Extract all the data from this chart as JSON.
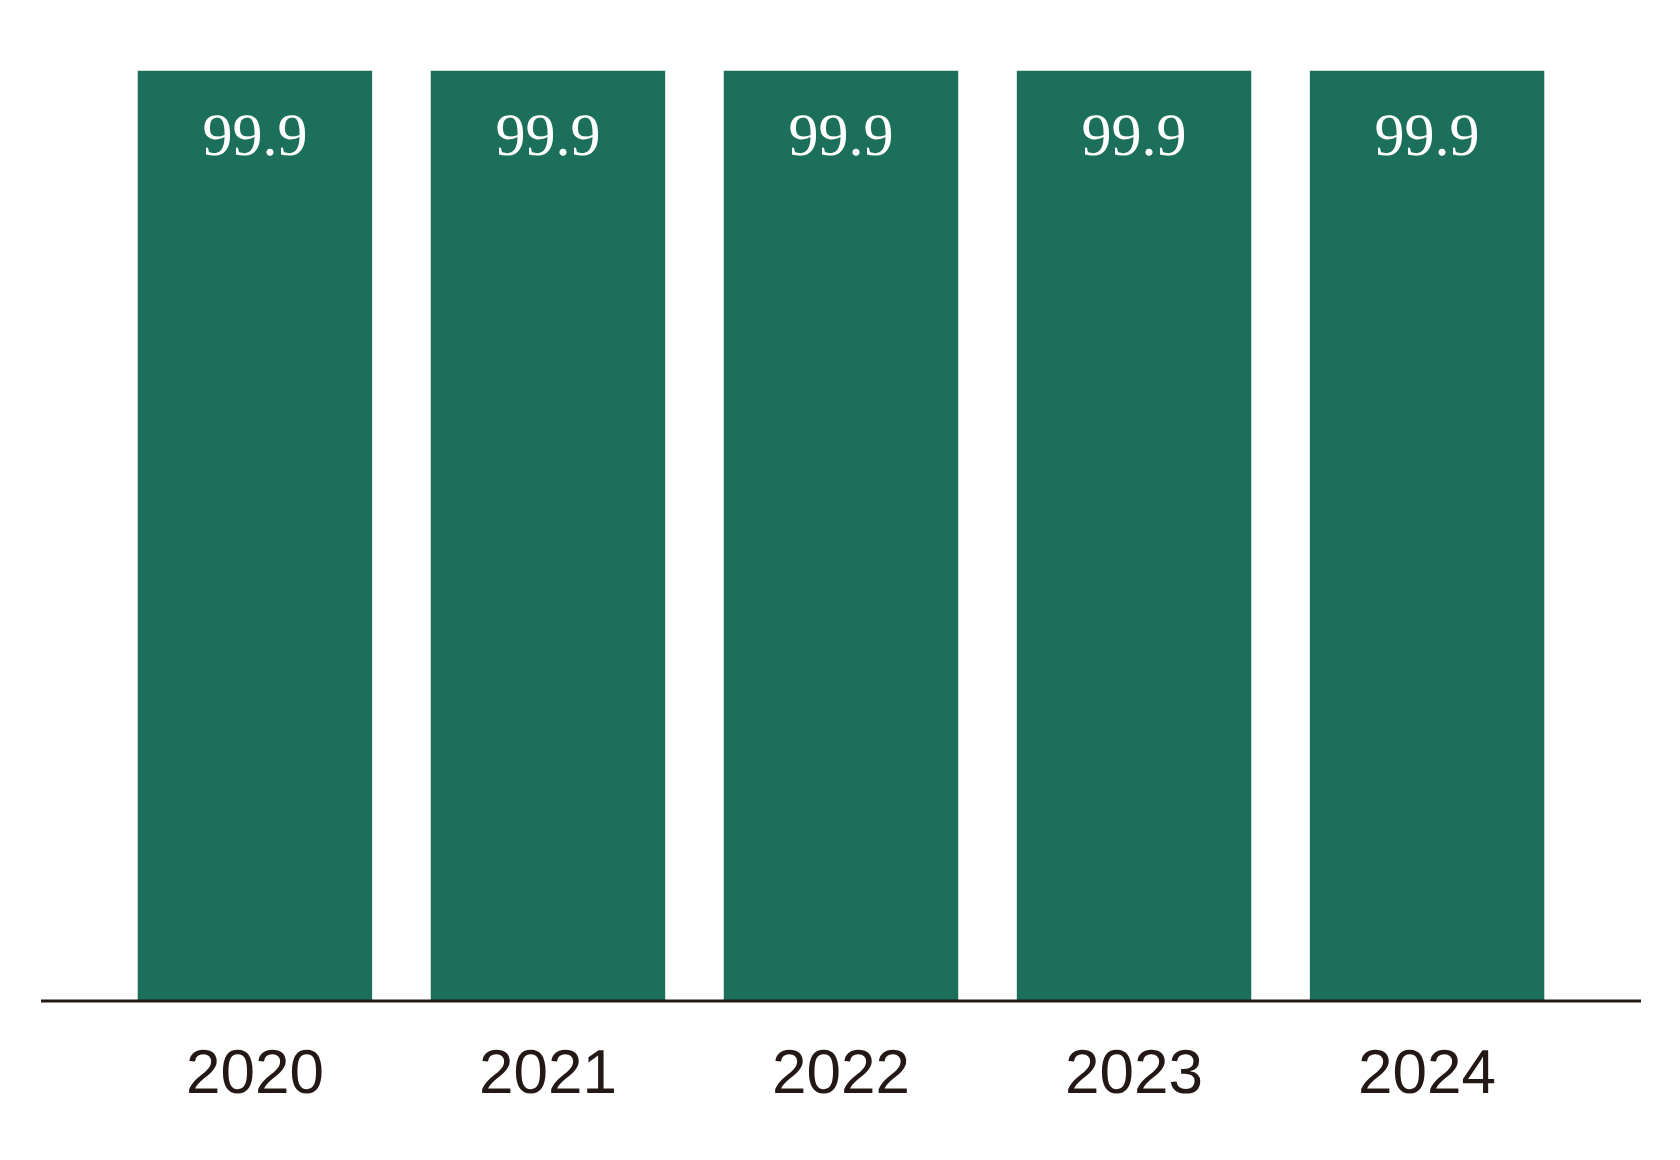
{
  "chart_data": {
    "type": "bar",
    "categories": [
      "2020",
      "2021",
      "2022",
      "2023",
      "2024"
    ],
    "values": [
      99.9,
      99.9,
      99.9,
      99.9,
      99.9
    ],
    "color": "#1b6f5b",
    "data_labels": true,
    "grid": false
  }
}
